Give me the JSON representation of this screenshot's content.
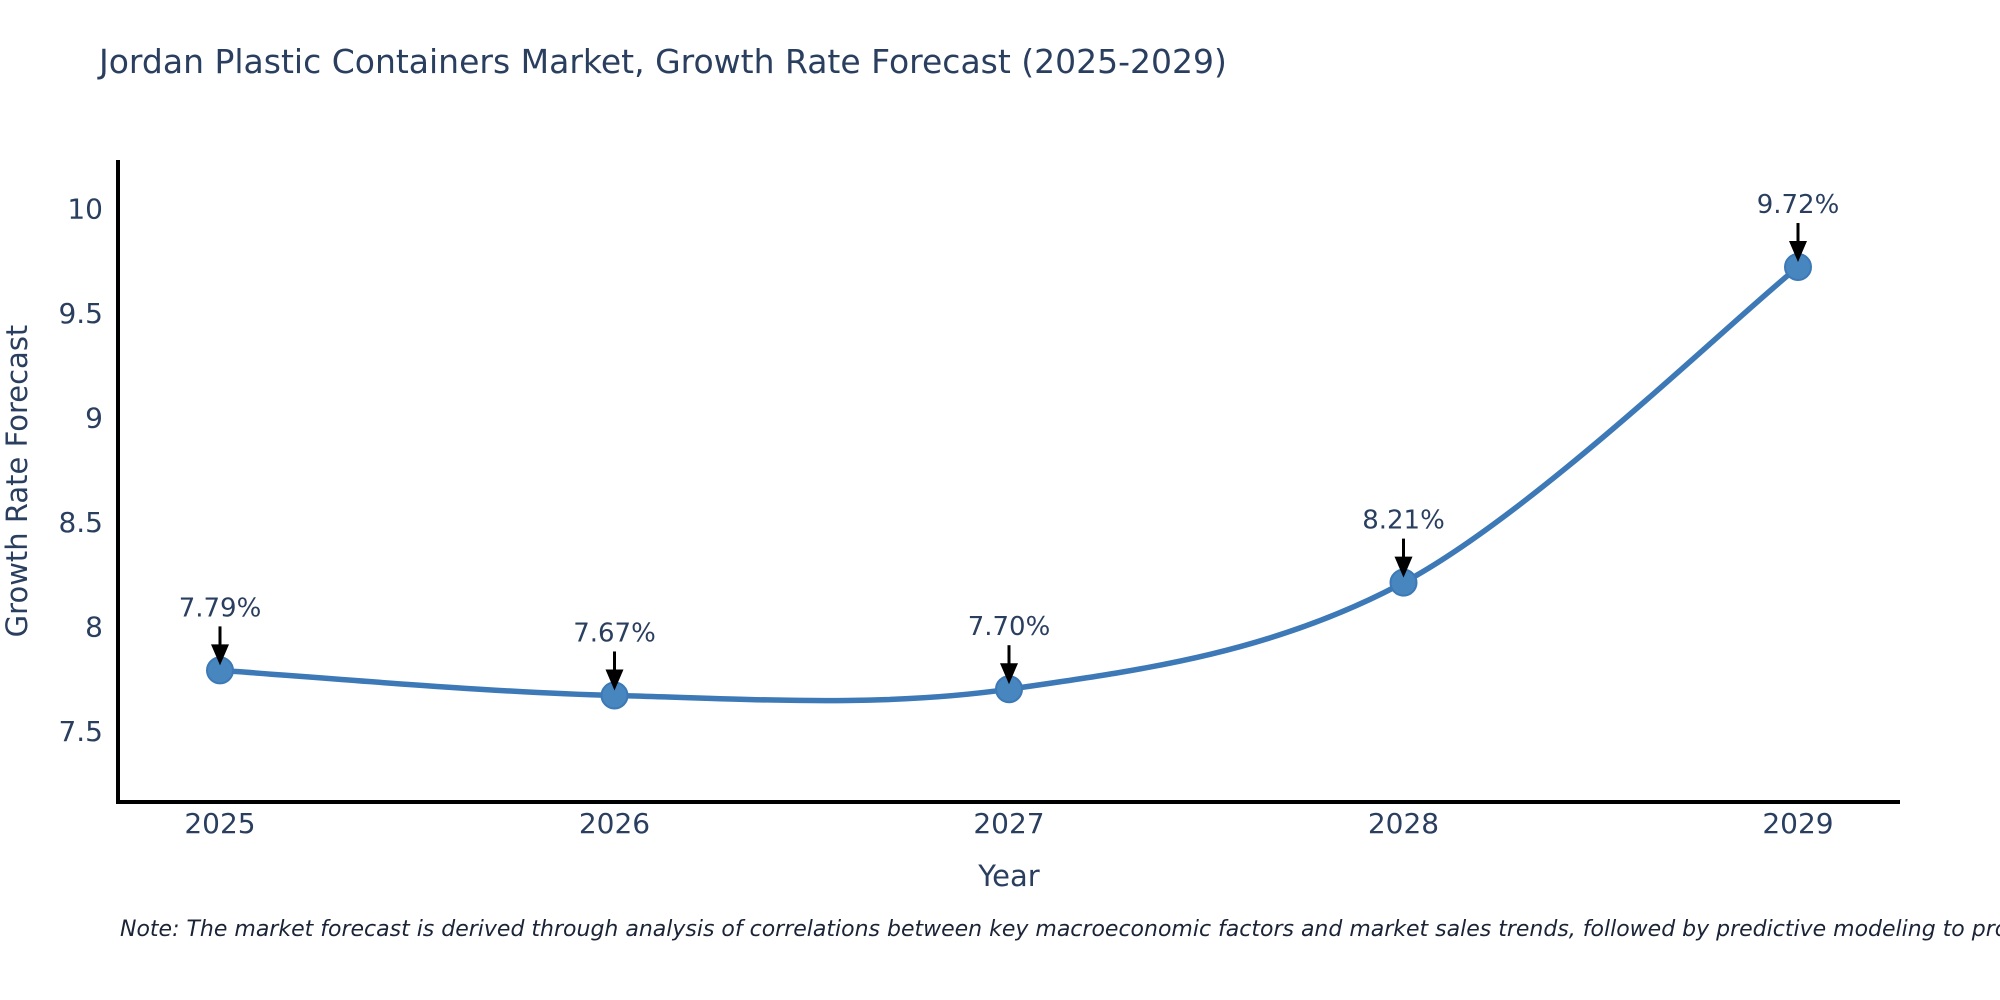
{
  "title": "Jordan Plastic Containers Market, Growth Rate Forecast (2025-2029)",
  "note": "Note: The market forecast is derived through analysis of correlations between key macroeconomic factors and market sales trends, followed by predictive modeling to project future sales",
  "colors": {
    "line": "#3c79b6",
    "marker_fill": "#4886bf",
    "marker_stroke": "#3c79b6",
    "axis_line": "#000000",
    "arrow": "#000000",
    "text": "#2a3f5f"
  },
  "chart_data": {
    "type": "line",
    "line_shape": "spline",
    "categories": [
      "2025",
      "2026",
      "2027",
      "2028",
      "2029"
    ],
    "x": [
      2025,
      2026,
      2027,
      2028,
      2029
    ],
    "series": [
      {
        "name": "Growth Rate Forecast",
        "values": [
          7.79,
          7.67,
          7.7,
          8.21,
          9.72
        ]
      }
    ],
    "annotations": [
      "7.79%",
      "7.67%",
      "7.70%",
      "8.21%",
      "9.72%"
    ],
    "title": "Jordan Plastic Containers Market, Growth Rate Forecast (2025-2029)",
    "xlabel": "Year",
    "ylabel": "Growth Rate Forecast",
    "ylim": [
      7.16,
      10.23
    ],
    "yticks": [
      7.5,
      8,
      8.5,
      9,
      9.5,
      10
    ],
    "ytick_labels": [
      "7.5",
      "8",
      "8.5",
      "9",
      "9.5",
      "10"
    ],
    "grid": false,
    "legend_position": "none",
    "marker": "circle"
  }
}
